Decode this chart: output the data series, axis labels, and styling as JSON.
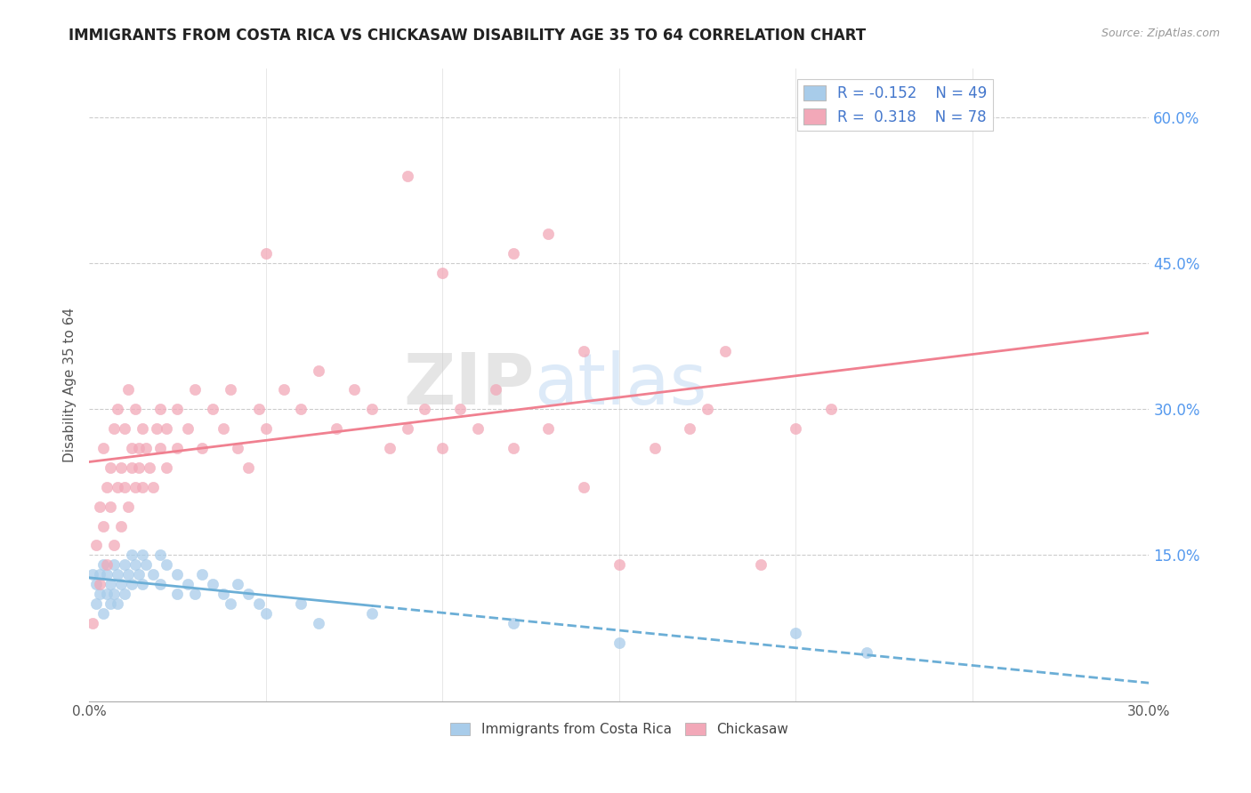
{
  "title": "IMMIGRANTS FROM COSTA RICA VS CHICKASAW DISABILITY AGE 35 TO 64 CORRELATION CHART",
  "source": "Source: ZipAtlas.com",
  "ylabel": "Disability Age 35 to 64",
  "ylabel_right_ticks": [
    "60.0%",
    "45.0%",
    "30.0%",
    "15.0%"
  ],
  "ylabel_right_vals": [
    0.6,
    0.45,
    0.3,
    0.15
  ],
  "xmin": 0.0,
  "xmax": 0.3,
  "ymin": 0.0,
  "ymax": 0.65,
  "legend_r1": "R = -0.152",
  "legend_n1": "N = 49",
  "legend_r2": "R =  0.318",
  "legend_n2": "N = 78",
  "color_blue": "#A8CCEA",
  "color_pink": "#F2A8B8",
  "watermark_zip": "ZIP",
  "watermark_atlas": "atlas",
  "blue_scatter": [
    [
      0.001,
      0.13
    ],
    [
      0.002,
      0.12
    ],
    [
      0.002,
      0.1
    ],
    [
      0.003,
      0.13
    ],
    [
      0.003,
      0.11
    ],
    [
      0.004,
      0.14
    ],
    [
      0.004,
      0.09
    ],
    [
      0.005,
      0.13
    ],
    [
      0.005,
      0.11
    ],
    [
      0.006,
      0.12
    ],
    [
      0.006,
      0.1
    ],
    [
      0.007,
      0.14
    ],
    [
      0.007,
      0.11
    ],
    [
      0.008,
      0.13
    ],
    [
      0.008,
      0.1
    ],
    [
      0.009,
      0.12
    ],
    [
      0.01,
      0.14
    ],
    [
      0.01,
      0.11
    ],
    [
      0.011,
      0.13
    ],
    [
      0.012,
      0.15
    ],
    [
      0.012,
      0.12
    ],
    [
      0.013,
      0.14
    ],
    [
      0.014,
      0.13
    ],
    [
      0.015,
      0.15
    ],
    [
      0.015,
      0.12
    ],
    [
      0.016,
      0.14
    ],
    [
      0.018,
      0.13
    ],
    [
      0.02,
      0.15
    ],
    [
      0.02,
      0.12
    ],
    [
      0.022,
      0.14
    ],
    [
      0.025,
      0.13
    ],
    [
      0.025,
      0.11
    ],
    [
      0.028,
      0.12
    ],
    [
      0.03,
      0.11
    ],
    [
      0.032,
      0.13
    ],
    [
      0.035,
      0.12
    ],
    [
      0.038,
      0.11
    ],
    [
      0.04,
      0.1
    ],
    [
      0.042,
      0.12
    ],
    [
      0.045,
      0.11
    ],
    [
      0.048,
      0.1
    ],
    [
      0.05,
      0.09
    ],
    [
      0.06,
      0.1
    ],
    [
      0.065,
      0.08
    ],
    [
      0.08,
      0.09
    ],
    [
      0.12,
      0.08
    ],
    [
      0.15,
      0.06
    ],
    [
      0.2,
      0.07
    ],
    [
      0.22,
      0.05
    ]
  ],
  "pink_scatter": [
    [
      0.001,
      0.08
    ],
    [
      0.002,
      0.16
    ],
    [
      0.003,
      0.12
    ],
    [
      0.003,
      0.2
    ],
    [
      0.004,
      0.18
    ],
    [
      0.004,
      0.26
    ],
    [
      0.005,
      0.14
    ],
    [
      0.005,
      0.22
    ],
    [
      0.006,
      0.2
    ],
    [
      0.006,
      0.24
    ],
    [
      0.007,
      0.16
    ],
    [
      0.007,
      0.28
    ],
    [
      0.008,
      0.22
    ],
    [
      0.008,
      0.3
    ],
    [
      0.009,
      0.18
    ],
    [
      0.009,
      0.24
    ],
    [
      0.01,
      0.22
    ],
    [
      0.01,
      0.28
    ],
    [
      0.011,
      0.2
    ],
    [
      0.011,
      0.32
    ],
    [
      0.012,
      0.24
    ],
    [
      0.012,
      0.26
    ],
    [
      0.013,
      0.22
    ],
    [
      0.013,
      0.3
    ],
    [
      0.014,
      0.26
    ],
    [
      0.014,
      0.24
    ],
    [
      0.015,
      0.22
    ],
    [
      0.015,
      0.28
    ],
    [
      0.016,
      0.26
    ],
    [
      0.017,
      0.24
    ],
    [
      0.018,
      0.22
    ],
    [
      0.019,
      0.28
    ],
    [
      0.02,
      0.26
    ],
    [
      0.02,
      0.3
    ],
    [
      0.022,
      0.24
    ],
    [
      0.022,
      0.28
    ],
    [
      0.025,
      0.3
    ],
    [
      0.025,
      0.26
    ],
    [
      0.028,
      0.28
    ],
    [
      0.03,
      0.32
    ],
    [
      0.032,
      0.26
    ],
    [
      0.035,
      0.3
    ],
    [
      0.038,
      0.28
    ],
    [
      0.04,
      0.32
    ],
    [
      0.042,
      0.26
    ],
    [
      0.045,
      0.24
    ],
    [
      0.048,
      0.3
    ],
    [
      0.05,
      0.28
    ],
    [
      0.055,
      0.32
    ],
    [
      0.06,
      0.3
    ],
    [
      0.065,
      0.34
    ],
    [
      0.07,
      0.28
    ],
    [
      0.075,
      0.32
    ],
    [
      0.08,
      0.3
    ],
    [
      0.085,
      0.26
    ],
    [
      0.09,
      0.28
    ],
    [
      0.095,
      0.3
    ],
    [
      0.1,
      0.26
    ],
    [
      0.105,
      0.3
    ],
    [
      0.11,
      0.28
    ],
    [
      0.115,
      0.32
    ],
    [
      0.12,
      0.26
    ],
    [
      0.13,
      0.28
    ],
    [
      0.14,
      0.22
    ],
    [
      0.15,
      0.14
    ],
    [
      0.16,
      0.26
    ],
    [
      0.17,
      0.28
    ],
    [
      0.175,
      0.3
    ],
    [
      0.18,
      0.36
    ],
    [
      0.19,
      0.14
    ],
    [
      0.2,
      0.28
    ],
    [
      0.21,
      0.3
    ],
    [
      0.05,
      0.46
    ],
    [
      0.09,
      0.54
    ],
    [
      0.1,
      0.44
    ],
    [
      0.12,
      0.46
    ],
    [
      0.13,
      0.48
    ],
    [
      0.14,
      0.36
    ]
  ]
}
